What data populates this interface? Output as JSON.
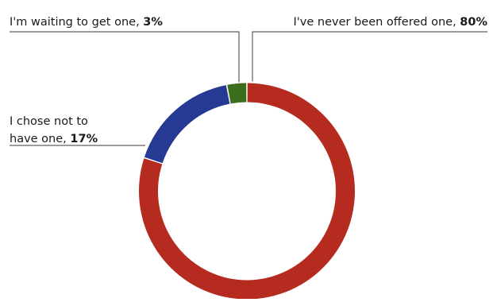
{
  "chart_data": {
    "type": "pie",
    "donut": true,
    "slices": [
      {
        "label": "I've never been offered one",
        "value": 80,
        "value_text": "80%",
        "color": "#b52b1f"
      },
      {
        "label": "I chose not to have one",
        "label_lines": [
          "I chose not to",
          "have one"
        ],
        "value": 17,
        "value_text": "17%",
        "color": "#263a94"
      },
      {
        "label": "I'm waiting to get one",
        "value": 3,
        "value_text": "3%",
        "color": "#3c6e1c"
      }
    ],
    "legend": "none"
  }
}
